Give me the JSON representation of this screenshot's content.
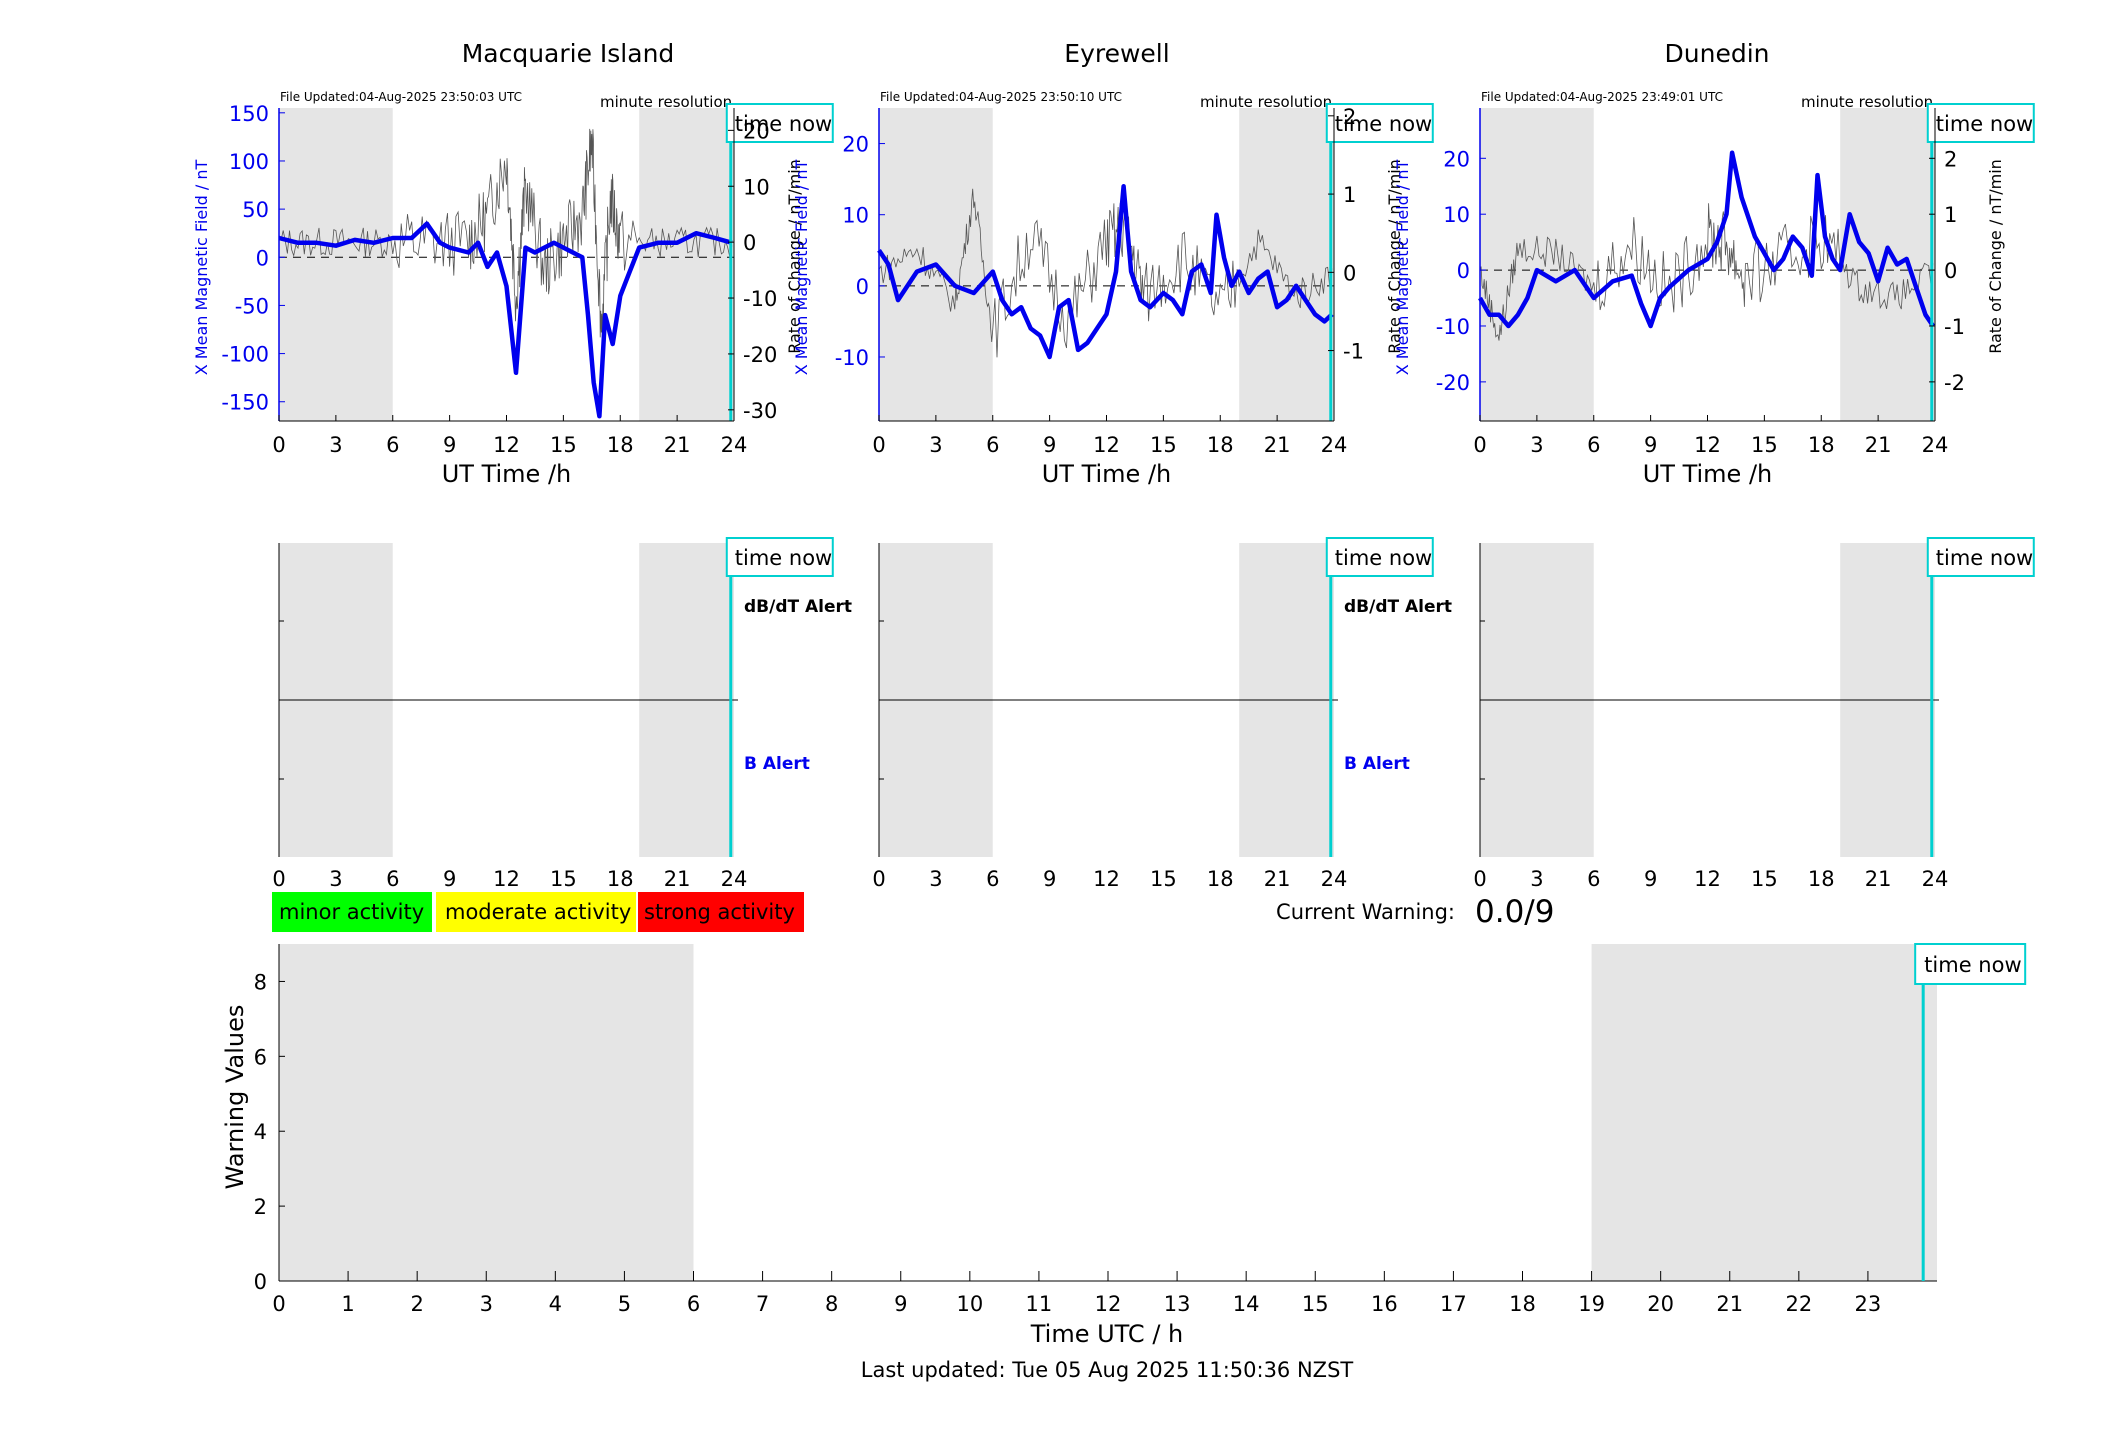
{
  "colors": {
    "shade": "#e5e5e5",
    "b_series": "#0000ee",
    "rate_series": "#555555",
    "time_now": "#00d0d0",
    "axis": "#000000",
    "axis_left_label": "#0000ee",
    "minor": "#00ff00",
    "moderate": "#ffff00",
    "strong": "#ff0000"
  },
  "stations": [
    {
      "name": "Macquarie Island",
      "file_updated": "File Updated:04-Aug-2025 23:50:03 UTC",
      "resolution": "minute resolution",
      "ylabel_left": "X Mean Magnetic Field / nT",
      "ylabel_right": "Rate of Change / nT/min",
      "xlabel": "UT Time /h",
      "time_now_label": "time now",
      "alert_dbdt": "dB/dT Alert",
      "alert_b": "B Alert",
      "x_ticks": [
        "0",
        "3",
        "6",
        "9",
        "12",
        "15",
        "18",
        "21",
        "24"
      ],
      "left_ticks": [
        "150",
        "100",
        "50",
        "0",
        "-50",
        "-100",
        "-150"
      ],
      "right_ticks": [
        "20",
        "10",
        "0",
        "-10",
        "-20",
        "-30"
      ]
    },
    {
      "name": "Eyrewell",
      "file_updated": "File Updated:04-Aug-2025 23:50:10 UTC",
      "resolution": "minute resolution",
      "ylabel_left": "X Mean Magnetic Field / nT",
      "ylabel_right": "Rate of Change / nT/min",
      "xlabel": "UT Time /h",
      "time_now_label": "time now",
      "alert_dbdt": "dB/dT Alert",
      "alert_b": "B Alert",
      "x_ticks": [
        "0",
        "3",
        "6",
        "9",
        "12",
        "15",
        "18",
        "21",
        "24"
      ],
      "left_ticks": [
        "20",
        "10",
        "0",
        "-10"
      ],
      "right_ticks": [
        "2",
        "1",
        "0",
        "-1"
      ]
    },
    {
      "name": "Dunedin",
      "file_updated": "File Updated:04-Aug-2025 23:49:01 UTC",
      "resolution": "minute resolution",
      "ylabel_left": "X Mean Magnetic Field / nT",
      "ylabel_right": "Rate of Change / nT/min",
      "xlabel": "UT Time /h",
      "time_now_label": "time now",
      "alert_dbdt": "",
      "alert_b": "",
      "x_ticks": [
        "0",
        "3",
        "6",
        "9",
        "12",
        "15",
        "18",
        "21",
        "24"
      ],
      "left_ticks": [
        "20",
        "10",
        "0",
        "-10",
        "-20"
      ],
      "right_ticks": [
        "2",
        "1",
        "0",
        "-1",
        "-2"
      ]
    }
  ],
  "legend": {
    "minor": "minor activity",
    "moderate": "moderate activity",
    "strong": "strong activity"
  },
  "warning": {
    "label": "Current Warning:",
    "value": "0.0/9"
  },
  "bottom": {
    "ylabel": "Warning Values",
    "xlabel": "Time UTC / h",
    "time_now_label": "time now",
    "y_ticks": [
      "0",
      "2",
      "4",
      "6",
      "8"
    ],
    "x_ticks": [
      "0",
      "1",
      "2",
      "3",
      "4",
      "5",
      "6",
      "7",
      "8",
      "9",
      "10",
      "11",
      "12",
      "13",
      "14",
      "15",
      "16",
      "17",
      "18",
      "19",
      "20",
      "21",
      "22",
      "23"
    ]
  },
  "last_updated": "Last updated: Tue 05 Aug 2025 11:50:36 NZST",
  "chart_data": [
    {
      "type": "line",
      "title": "Macquarie Island",
      "xlabel": "UT Time /h",
      "ylabel": "X Mean Magnetic Field / nT",
      "y2label": "Rate of Change / nT/min",
      "xlim": [
        0,
        24
      ],
      "ylim": [
        -170,
        155
      ],
      "y2lim": [
        -32,
        24
      ],
      "shaded_hours": [
        [
          0,
          6
        ],
        [
          19,
          24
        ]
      ],
      "time_now_h": 23.83,
      "series": [
        {
          "name": "X Mean Magnetic Field / nT",
          "axis": "left",
          "x": [
            0,
            1,
            2,
            3,
            4,
            5,
            6,
            7,
            7.8,
            8.5,
            9,
            10,
            10.5,
            11,
            11.5,
            12,
            12.5,
            13,
            13.5,
            14,
            14.5,
            15,
            15.5,
            16,
            16.3,
            16.6,
            16.9,
            17.2,
            17.6,
            18,
            18.5,
            19,
            20,
            21,
            22,
            23,
            23.9
          ],
          "values": [
            20,
            15,
            15,
            12,
            18,
            15,
            20,
            20,
            35,
            15,
            10,
            5,
            15,
            -10,
            5,
            -30,
            -120,
            10,
            5,
            10,
            15,
            10,
            5,
            0,
            -60,
            -130,
            -165,
            -60,
            -90,
            -40,
            -15,
            10,
            15,
            15,
            25,
            20,
            15
          ]
        },
        {
          "name": "Rate of Change / nT/min",
          "axis": "right",
          "x": [
            0,
            2,
            4,
            6,
            8,
            10,
            11,
            12,
            12.5,
            13,
            14,
            15,
            16,
            16.5,
            17,
            17.5,
            18,
            20,
            22,
            24
          ],
          "values": [
            0,
            0,
            0,
            0,
            0,
            0,
            5,
            15,
            -10,
            10,
            -5,
            0,
            5,
            18,
            -15,
            8,
            0,
            0,
            0,
            0
          ]
        }
      ]
    },
    {
      "type": "line",
      "title": "Eyrewell",
      "xlabel": "UT Time /h",
      "ylabel": "X Mean Magnetic Field / nT",
      "y2label": "Rate of Change / nT/min",
      "xlim": [
        0,
        24
      ],
      "ylim": [
        -19,
        25
      ],
      "y2lim": [
        -1.9,
        2.1
      ],
      "shaded_hours": [
        [
          0,
          6
        ],
        [
          19,
          24
        ]
      ],
      "time_now_h": 23.83,
      "series": [
        {
          "name": "X Mean Magnetic Field / nT",
          "axis": "left",
          "x": [
            0,
            0.5,
            1,
            2,
            3,
            4,
            5,
            6,
            6.5,
            7,
            7.5,
            8,
            8.5,
            9,
            9.5,
            10,
            10.5,
            11,
            11.5,
            12,
            12.5,
            12.9,
            13.3,
            13.8,
            14.3,
            15,
            15.5,
            16,
            16.5,
            17,
            17.5,
            17.8,
            18.2,
            18.6,
            19,
            19.5,
            20,
            20.5,
            21,
            21.5,
            22,
            22.5,
            23,
            23.5,
            23.9
          ],
          "values": [
            5,
            3,
            -2,
            2,
            3,
            0,
            -1,
            2,
            -2,
            -4,
            -3,
            -6,
            -7,
            -10,
            -3,
            -2,
            -9,
            -8,
            -6,
            -4,
            2,
            14,
            2,
            -2,
            -3,
            -1,
            -2,
            -4,
            2,
            3,
            -1,
            10,
            4,
            0,
            2,
            -1,
            1,
            2,
            -3,
            -2,
            0,
            -2,
            -4,
            -5,
            -4
          ]
        },
        {
          "name": "Rate of Change / nT/min",
          "axis": "right",
          "x": [
            0,
            2,
            4,
            5,
            6,
            8,
            10,
            12,
            13,
            14,
            16,
            18,
            20,
            22,
            24
          ],
          "values": [
            0,
            0.3,
            -0.4,
            1,
            -0.8,
            0.5,
            -0.6,
            0.4,
            0.6,
            -0.3,
            0.2,
            -0.5,
            0.4,
            -0.3,
            0
          ]
        }
      ]
    },
    {
      "type": "line",
      "title": "Dunedin",
      "xlabel": "UT Time /h",
      "ylabel": "X Mean Magnetic Field / nT",
      "y2label": "Rate of Change / nT/min",
      "xlim": [
        0,
        24
      ],
      "ylim": [
        -27,
        29
      ],
      "y2lim": [
        -2.7,
        2.9
      ],
      "shaded_hours": [
        [
          0,
          6
        ],
        [
          19,
          24
        ]
      ],
      "time_now_h": 23.83,
      "series": [
        {
          "name": "X Mean Magnetic Field / nT",
          "axis": "left",
          "x": [
            0,
            0.5,
            1,
            1.5,
            2,
            2.5,
            3,
            4,
            5,
            6,
            7,
            8,
            8.5,
            9,
            9.5,
            10,
            11,
            12,
            12.5,
            13,
            13.3,
            13.8,
            14.5,
            15,
            15.5,
            16,
            16.5,
            17,
            17.5,
            17.8,
            18.2,
            18.6,
            19,
            19.5,
            20,
            20.5,
            21,
            21.5,
            22,
            22.5,
            23,
            23.5,
            23.9
          ],
          "values": [
            -5,
            -8,
            -8,
            -10,
            -8,
            -5,
            0,
            -2,
            0,
            -5,
            -2,
            -1,
            -6,
            -10,
            -5,
            -3,
            0,
            2,
            5,
            10,
            21,
            13,
            6,
            3,
            0,
            2,
            6,
            4,
            -1,
            17,
            6,
            2,
            0,
            10,
            5,
            3,
            -2,
            4,
            1,
            2,
            -3,
            -8,
            -10
          ]
        },
        {
          "name": "Rate of Change / nT/min",
          "axis": "right",
          "x": [
            0,
            1,
            2,
            4,
            6,
            8,
            10,
            12,
            13,
            14,
            16,
            18,
            20,
            22,
            24
          ],
          "values": [
            0,
            -1.2,
            0.4,
            0.3,
            -0.3,
            0.5,
            -0.4,
            0.6,
            0.5,
            -0.2,
            0.2,
            0.6,
            -0.3,
            -0.5,
            0
          ]
        }
      ]
    },
    {
      "type": "line",
      "title": "",
      "xlabel": "Time UTC / h",
      "ylabel": "Warning Values",
      "xlim": [
        0,
        24
      ],
      "ylim": [
        0,
        9
      ],
      "shaded_hours": [
        [
          0,
          6
        ],
        [
          19,
          24
        ]
      ],
      "time_now_h": 23.8,
      "current_warning": 0.0,
      "series": []
    }
  ]
}
